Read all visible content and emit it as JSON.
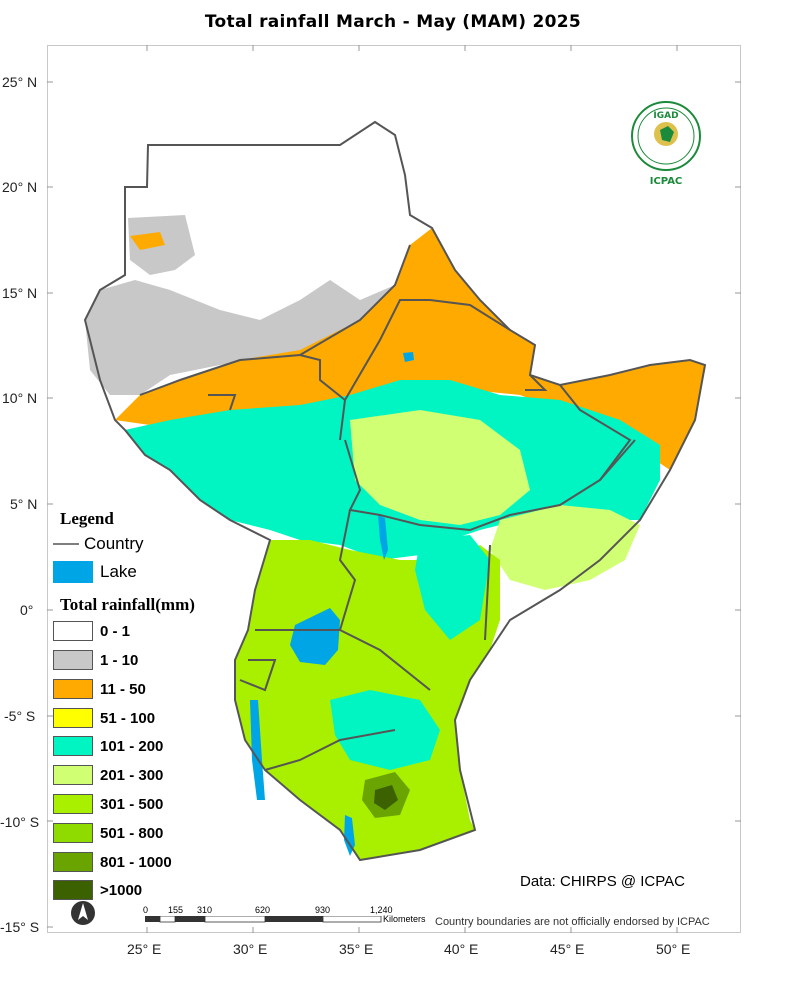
{
  "title": "Total rainfall March - May (MAM)  2025",
  "latitude_labels": [
    "25° N",
    "20° N",
    "15° N",
    "10° N",
    "5° N",
    "0°",
    "-5° S",
    "-10° S",
    "-15° S"
  ],
  "longitude_labels": [
    "25° E",
    "30° E",
    "35° E",
    "40° E",
    "45° E",
    "50° E"
  ],
  "legend": {
    "title": "Legend",
    "country_label": "Country",
    "lake_label": "Lake",
    "rainfall_title": "Total rainfall(mm)",
    "classes": [
      {
        "label": "0 - 1",
        "color": "#ffffff"
      },
      {
        "label": "1 - 10",
        "color": "#c8c8c8"
      },
      {
        "label": "11 - 50",
        "color": "#ffaa00"
      },
      {
        "label": "51 - 100",
        "color": "#ffff00"
      },
      {
        "label": "101 - 200",
        "color": "#00f5c3"
      },
      {
        "label": "201 - 300",
        "color": "#d1ff73"
      },
      {
        "label": "301 - 500",
        "color": "#a8f000"
      },
      {
        "label": "501 - 800",
        "color": "#8fdb00"
      },
      {
        "label": "801 - 1000",
        "color": "#6aa400"
      },
      {
        "label": ">1000",
        "color": "#3b6100"
      }
    ],
    "lake_color": "#00a5e6",
    "country_line_color": "#555555"
  },
  "data_credit": "Data: CHIRPS @ ICPAC",
  "disclaimer": "Country boundaries are not officially endorsed by ICPAC",
  "scalebar": {
    "labels": [
      "0",
      "155",
      "310",
      "620",
      "930",
      "1,240"
    ],
    "unit": "Kilometers"
  },
  "logo": {
    "top_text": "IGAD",
    "bottom_text": "ICPAC",
    "color": "#1b8a3a"
  },
  "north_arrow_icon": "north-arrow-icon"
}
